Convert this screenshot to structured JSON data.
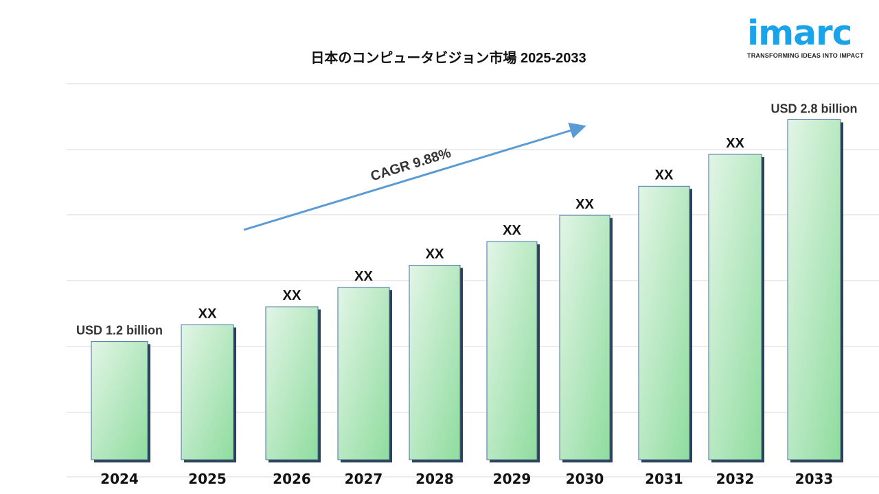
{
  "title": "日本のコンピュータビジョン市場  2025-2033",
  "logo": {
    "text": "imarc",
    "tagline": "TRANSFORMING IDEAS INTO IMPACT",
    "color": "#1aa3e8"
  },
  "chart_data": {
    "type": "bar",
    "title": "日本のコンピュータビジョン市場  2025-2033",
    "categories": [
      "2024",
      "2025",
      "2026",
      "2027",
      "2028",
      "2029",
      "2030",
      "2031",
      "2032",
      "2033"
    ],
    "values": [
      1.2,
      1.32,
      1.45,
      1.59,
      1.75,
      1.92,
      2.11,
      2.32,
      2.55,
      2.8
    ],
    "data_labels": [
      "USD  1.2 billion",
      "XX",
      "XX",
      "XX",
      "XX",
      "XX",
      "XX",
      "XX",
      "XX",
      "USD  2.8 billion"
    ],
    "unit": "USD billion",
    "annotation": "CAGR  9.88%",
    "grid": true,
    "bar_color": "#a8e4b4",
    "arrow_color": "#5b9bd5"
  }
}
